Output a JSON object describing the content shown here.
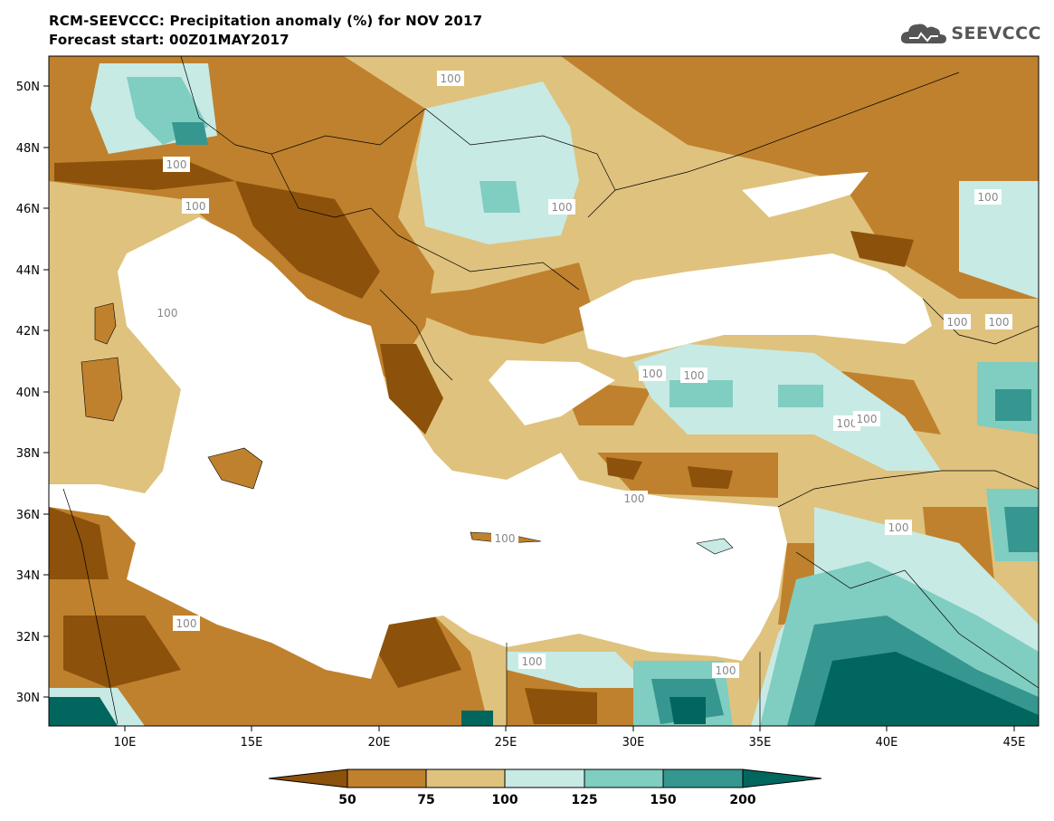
{
  "title_line1": "RCM-SEEVCCC: Precipitation anomaly (%) for NOV 2017",
  "title_line2": "Forecast start: 00Z01MAY2017",
  "logo_text": "SEEVCCC",
  "map": {
    "lat_ticks": [
      "50N",
      "48N",
      "46N",
      "44N",
      "42N",
      "40N",
      "38N",
      "36N",
      "34N",
      "32N",
      "30N"
    ],
    "lon_ticks": [
      "10E",
      "15E",
      "20E",
      "25E",
      "30E",
      "35E",
      "40E",
      "45E"
    ],
    "contour_label": "100"
  },
  "colorbar": {
    "labels": [
      "50",
      "75",
      "100",
      "125",
      "150",
      "200"
    ],
    "colors": {
      "lt50": "#8c510a",
      "c50_75": "#bf812d",
      "c75_100": "#dfc27d",
      "c100_125": "#c7eae5",
      "c125_150": "#80cdc1",
      "c150_200": "#35978f",
      "gt200": "#01665e",
      "sea": "#ffffff"
    }
  }
}
